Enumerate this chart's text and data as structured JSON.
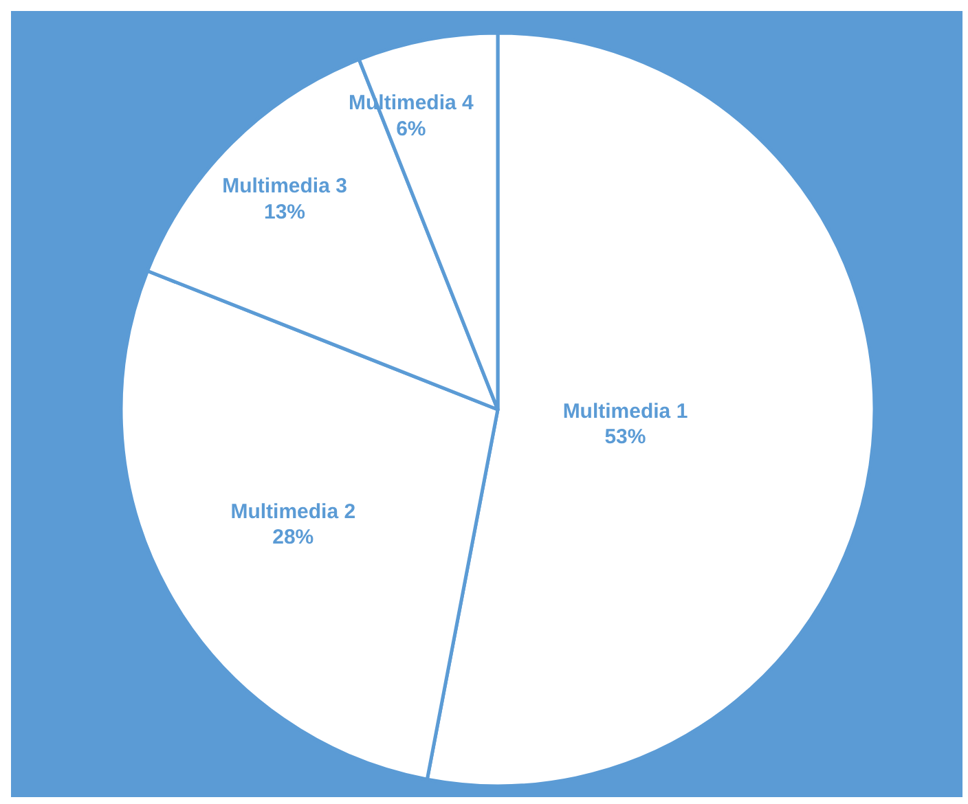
{
  "chart_data": {
    "type": "pie",
    "categories": [
      "Multimedia 1",
      "Multimedia 2",
      "Multimedia 3",
      "Multimedia 4"
    ],
    "values": [
      53,
      28,
      13,
      6
    ],
    "value_labels": [
      "53%",
      "28%",
      "13%",
      "6%"
    ],
    "colors": [
      "#ffffff",
      "#ffffff",
      "#ffffff",
      "#ffffff"
    ]
  }
}
